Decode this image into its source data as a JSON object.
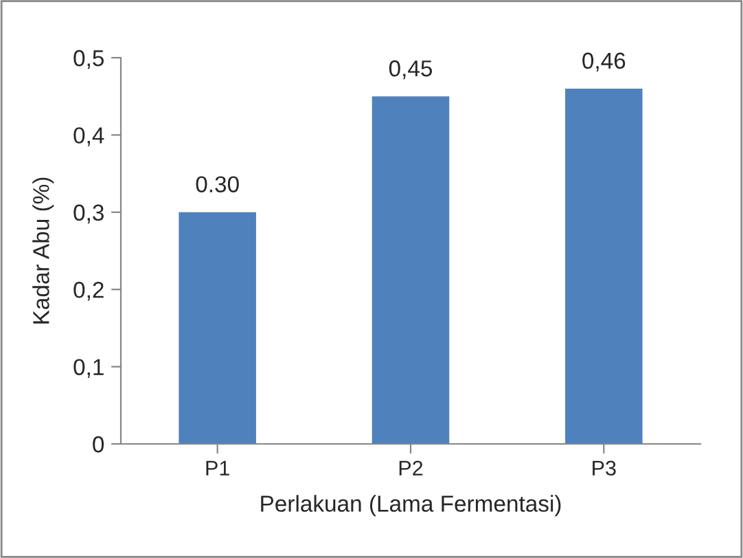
{
  "chart_data": {
    "type": "bar",
    "xlabel": "Perlakuan (Lama Fermentasi)",
    "ylabel": "Kadar Abu (%)",
    "categories": [
      "P1",
      "P2",
      "P3"
    ],
    "values": [
      0.3,
      0.45,
      0.46
    ],
    "value_labels": [
      "0.30",
      "0,45",
      "0,46"
    ],
    "color": "#4f81bd",
    "ylim": [
      0,
      0.5
    ],
    "yticks": [
      0,
      {
        "value": 0.1,
        "label": "0,1"
      },
      {
        "value": 0.2,
        "label": "0,2"
      },
      {
        "value": 0.3,
        "label": "0,3"
      },
      {
        "value": 0.4,
        "label": "0,4"
      },
      {
        "value": 0.5,
        "label": "0,5"
      }
    ],
    "grid": false,
    "legend": false
  }
}
